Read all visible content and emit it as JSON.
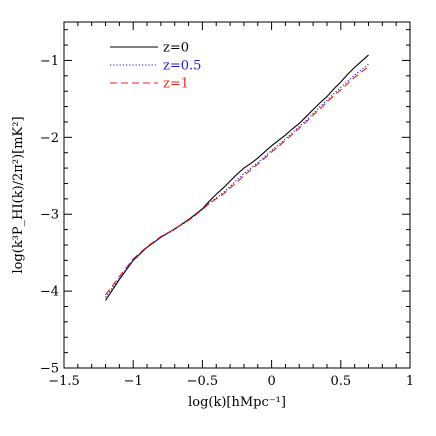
{
  "chart_data": {
    "type": "line",
    "xlabel": "log(k)[hMpc⁻¹]",
    "ylabel": "log(k³P_HI(k)/2π²)[mK²]",
    "xlim": [
      -1.5,
      1.0
    ],
    "ylim": [
      -5.0,
      -0.5
    ],
    "x_ticks": [
      -1.5,
      -1,
      -0.5,
      0,
      0.5,
      1
    ],
    "x_tick_labels": [
      "−1.5",
      "−1",
      "−0.5",
      "0",
      "0.5",
      "1"
    ],
    "y_ticks": [
      -5,
      -4,
      -3,
      -2,
      -1
    ],
    "y_tick_labels": [
      "−5",
      "−4",
      "−3",
      "−2",
      "−1"
    ],
    "grid": false,
    "legend_position": "top-left",
    "series": [
      {
        "name": "z=0",
        "color": "#000000",
        "style": "solid",
        "x": [
          -1.2,
          -1.1,
          -1.0,
          -0.9,
          -0.8,
          -0.7,
          -0.6,
          -0.5,
          -0.45,
          -0.4,
          -0.35,
          -0.3,
          -0.25,
          -0.2,
          -0.15,
          -0.1,
          -0.05,
          0.0,
          0.05,
          0.1,
          0.15,
          0.2,
          0.25,
          0.3,
          0.35,
          0.4,
          0.45,
          0.5,
          0.55,
          0.6,
          0.65,
          0.7
        ],
        "y": [
          -4.12,
          -3.85,
          -3.6,
          -3.43,
          -3.3,
          -3.19,
          -3.07,
          -2.93,
          -2.83,
          -2.74,
          -2.66,
          -2.57,
          -2.48,
          -2.4,
          -2.34,
          -2.27,
          -2.19,
          -2.11,
          -2.04,
          -1.97,
          -1.89,
          -1.82,
          -1.73,
          -1.64,
          -1.55,
          -1.47,
          -1.37,
          -1.28,
          -1.18,
          -1.09,
          -1.01,
          -0.93
        ]
      },
      {
        "name": "z=0.5",
        "color": "#1a1adc",
        "style": "dotted",
        "x": [
          -1.2,
          -1.1,
          -1.0,
          -0.9,
          -0.8,
          -0.7,
          -0.6,
          -0.5,
          -0.45,
          -0.4,
          -0.35,
          -0.3,
          -0.25,
          -0.2,
          -0.15,
          -0.1,
          -0.05,
          0.0,
          0.05,
          0.1,
          0.15,
          0.2,
          0.25,
          0.3,
          0.35,
          0.4,
          0.45,
          0.5,
          0.55,
          0.6,
          0.65,
          0.7
        ],
        "y": [
          -4.08,
          -3.83,
          -3.59,
          -3.43,
          -3.3,
          -3.2,
          -3.08,
          -2.94,
          -2.85,
          -2.79,
          -2.72,
          -2.64,
          -2.55,
          -2.47,
          -2.4,
          -2.33,
          -2.25,
          -2.17,
          -2.1,
          -2.02,
          -1.94,
          -1.86,
          -1.78,
          -1.69,
          -1.6,
          -1.52,
          -1.43,
          -1.35,
          -1.27,
          -1.19,
          -1.12,
          -1.05
        ]
      },
      {
        "name": "z=1",
        "color": "#e8231f",
        "style": "dashed",
        "x": [
          -1.2,
          -1.1,
          -1.0,
          -0.9,
          -0.8,
          -0.7,
          -0.6,
          -0.5,
          -0.45,
          -0.4,
          -0.35,
          -0.3,
          -0.25,
          -0.2,
          -0.15,
          -0.1,
          -0.05,
          0.0,
          0.05,
          0.1,
          0.15,
          0.2,
          0.25,
          0.3,
          0.35,
          0.4,
          0.45,
          0.5,
          0.55,
          0.6,
          0.65,
          0.7
        ],
        "y": [
          -4.05,
          -3.81,
          -3.58,
          -3.42,
          -3.29,
          -3.19,
          -3.08,
          -2.94,
          -2.86,
          -2.8,
          -2.74,
          -2.66,
          -2.58,
          -2.5,
          -2.42,
          -2.35,
          -2.27,
          -2.19,
          -2.12,
          -2.04,
          -1.96,
          -1.88,
          -1.8,
          -1.71,
          -1.63,
          -1.54,
          -1.46,
          -1.38,
          -1.3,
          -1.22,
          -1.15,
          -1.08
        ]
      }
    ]
  }
}
